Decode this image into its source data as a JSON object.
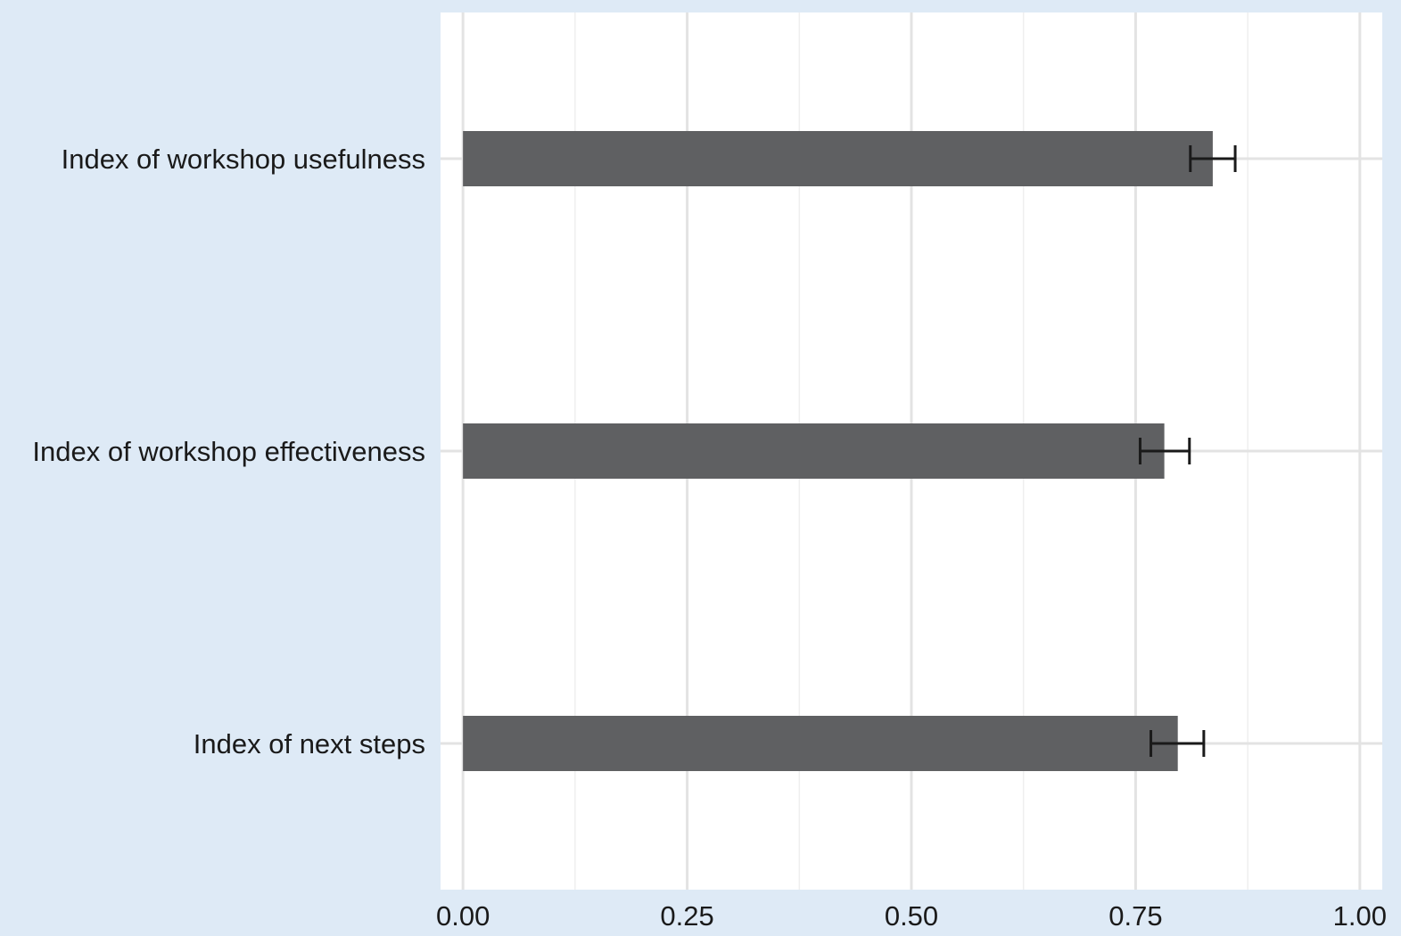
{
  "chart_data": {
    "type": "bar",
    "orientation": "horizontal",
    "categories": [
      "Index of workshop usefulness",
      "Index of workshop effectiveness",
      "Index of next steps"
    ],
    "values": [
      0.836,
      0.782,
      0.797
    ],
    "error_bars": [
      {
        "low": 0.811,
        "high": 0.861
      },
      {
        "low": 0.755,
        "high": 0.81
      },
      {
        "low": 0.767,
        "high": 0.826
      }
    ],
    "xlim": [
      -0.025,
      1.025
    ],
    "xticks": [
      "0.00",
      "0.25",
      "0.50",
      "0.75",
      "1.00"
    ],
    "xtick_values": [
      0,
      0.25,
      0.5,
      0.75,
      1.0
    ],
    "grid": true,
    "colors": {
      "bar": "#5f6062",
      "error_bar": "#1a1a1a",
      "panel": "#ffffff",
      "background": "#deeaf6",
      "grid_major": "#e3e3e3",
      "grid_minor": "#efefef"
    }
  }
}
